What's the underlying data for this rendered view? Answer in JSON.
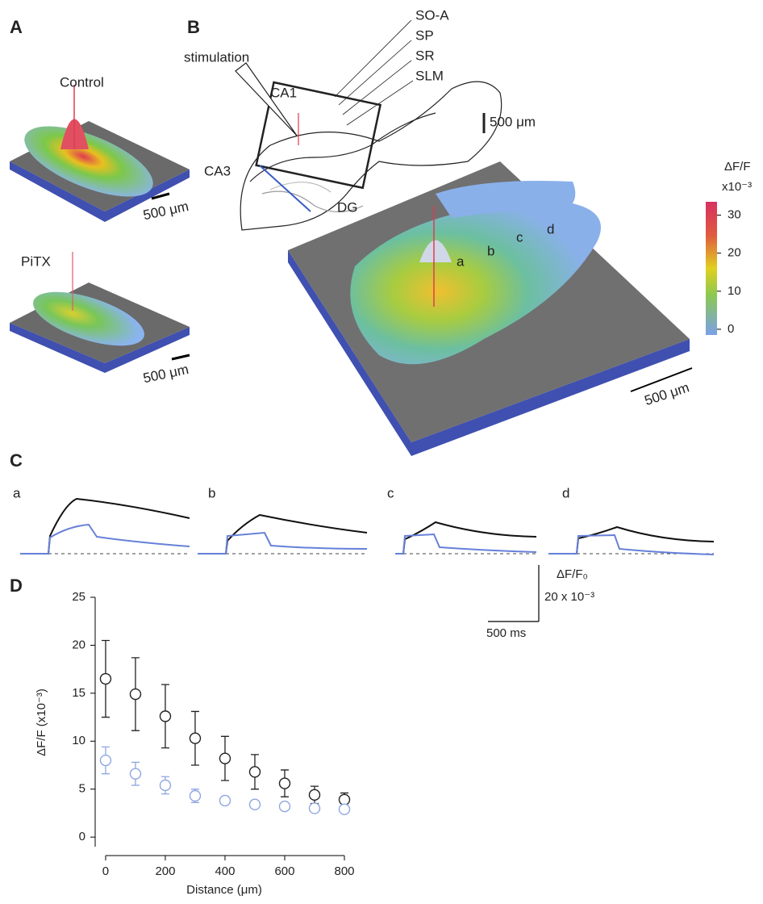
{
  "panel_labels": [
    "A",
    "B",
    "C",
    "D"
  ],
  "panel_a": {
    "top_label": "Control",
    "bottom_label": "PiTX",
    "top_scale": "500 μm",
    "bottom_scale": "500 μm"
  },
  "panel_b": {
    "stimulation": "stimulation",
    "layers": [
      "SO-A",
      "SP",
      "SR",
      "SLM"
    ],
    "regions": [
      "CA1",
      "CA3",
      "DG"
    ],
    "map_scale": "500 μm",
    "surface_scale": "500 μm",
    "sites": [
      "a",
      "b",
      "c",
      "d"
    ],
    "colorbar": {
      "title": "ΔF/F",
      "unit": "x10⁻³",
      "lim": [
        -1.5,
        33.5
      ],
      "ticks": [
        0,
        10,
        20,
        30
      ]
    }
  },
  "panel_c": {
    "sites": [
      "a",
      "b",
      "c",
      "d"
    ],
    "amplitude_label": "ΔF/F₀",
    "amplitude_scale": "20 x 10⁻³",
    "time_scale": "500 ms"
  },
  "chart_data": {
    "type": "scatter",
    "xlabel": "Distance (μm)",
    "ylabel": "ΔF/F (x10⁻³)",
    "x": [
      0,
      100,
      200,
      300,
      400,
      500,
      600,
      700,
      800
    ],
    "xlim": [
      -35,
      800
    ],
    "xticks": [
      0,
      200,
      400,
      600,
      800
    ],
    "ylim": [
      -1,
      25
    ],
    "yticks": [
      0,
      5,
      10,
      15,
      20,
      25
    ],
    "series": [
      {
        "color": "#222222",
        "values": [
          16.5,
          14.9,
          12.6,
          10.3,
          8.2,
          6.8,
          5.6,
          4.4,
          3.9
        ],
        "errors": [
          4.0,
          3.8,
          3.3,
          2.8,
          2.3,
          1.8,
          1.4,
          0.9,
          0.7
        ]
      },
      {
        "color": "#8fa6e0",
        "values": [
          8.0,
          6.6,
          5.4,
          4.3,
          3.8,
          3.4,
          3.2,
          3.0,
          2.9
        ],
        "errors": [
          1.4,
          1.2,
          0.9,
          0.7,
          0.4,
          0.3,
          0.3,
          0.3,
          0.3
        ]
      }
    ]
  }
}
